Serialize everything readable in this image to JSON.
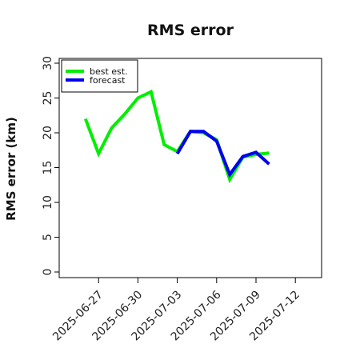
{
  "chart_data": {
    "type": "line",
    "title": "RMS error",
    "xlabel": "",
    "ylabel": "RMS error (km)",
    "ylim": [
      0,
      30
    ],
    "yticks": [
      0,
      5,
      10,
      15,
      20,
      25,
      30
    ],
    "xlim": [
      "2025-06-24",
      "2025-07-14"
    ],
    "xticks": [
      "2025-06-27",
      "2025-06-30",
      "2025-07-03",
      "2025-07-06",
      "2025-07-09",
      "2025-07-12"
    ],
    "highlight_tick": "2025-07-03",
    "highlight_color": "#228b22",
    "grid": false,
    "legend": "top-left",
    "series": [
      {
        "name": "best est.",
        "color": "#00ee00",
        "points": [
          {
            "x": "2025-06-26",
            "y": 22.0
          },
          {
            "x": "2025-06-27",
            "y": 17.0
          },
          {
            "x": "2025-06-28",
            "y": 20.7
          },
          {
            "x": "2025-06-29",
            "y": 22.7
          },
          {
            "x": "2025-06-30",
            "y": 25.0
          },
          {
            "x": "2025-07-01",
            "y": 25.9
          },
          {
            "x": "2025-07-02",
            "y": 18.3
          },
          {
            "x": "2025-07-03",
            "y": 17.3
          },
          {
            "x": "2025-07-04",
            "y": 20.2
          },
          {
            "x": "2025-07-05",
            "y": 20.0
          },
          {
            "x": "2025-07-06",
            "y": 19.0
          },
          {
            "x": "2025-07-07",
            "y": 13.3
          },
          {
            "x": "2025-07-08",
            "y": 16.5
          },
          {
            "x": "2025-07-09",
            "y": 16.9
          },
          {
            "x": "2025-07-10",
            "y": 17.1
          }
        ]
      },
      {
        "name": "forecast",
        "color": "#0000ee",
        "points": [
          {
            "x": "2025-07-03",
            "y": 17.0
          },
          {
            "x": "2025-07-04",
            "y": 20.2
          },
          {
            "x": "2025-07-05",
            "y": 20.2
          },
          {
            "x": "2025-07-06",
            "y": 18.8
          },
          {
            "x": "2025-07-07",
            "y": 14.0
          },
          {
            "x": "2025-07-08",
            "y": 16.6
          },
          {
            "x": "2025-07-09",
            "y": 17.2
          },
          {
            "x": "2025-07-10",
            "y": 15.5
          }
        ]
      }
    ]
  }
}
